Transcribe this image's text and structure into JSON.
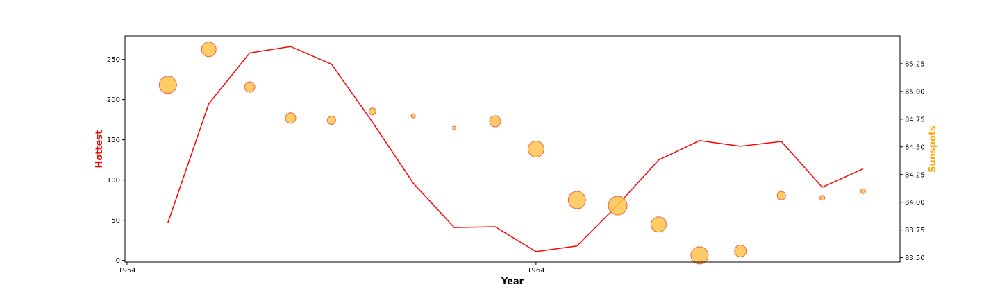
{
  "chart_data": {
    "type": "line",
    "title": "",
    "xlabel": "Year",
    "ylabel_left": "Hottest",
    "ylabel_right": "Sunspots",
    "x": [
      1955,
      1956,
      1957,
      1958,
      1959,
      1960,
      1961,
      1962,
      1963,
      1964,
      1965,
      1966,
      1967,
      1968,
      1969,
      1970,
      1971,
      1972
    ],
    "xlim": [
      1953.95,
      1972.9
    ],
    "xticks": [
      1954,
      1964
    ],
    "xtick_labels": [
      "1954",
      "1964"
    ],
    "ylim_left": [
      -2,
      279
    ],
    "yticks_left": [
      0,
      50,
      100,
      150,
      200,
      250
    ],
    "ytick_labels_left": [
      "0",
      "50",
      "100",
      "150",
      "200",
      "250"
    ],
    "ylim_right": [
      83.46,
      85.5
    ],
    "yticks_right": [
      83.5,
      83.75,
      84.0,
      84.25,
      84.5,
      84.75,
      85.0,
      85.25
    ],
    "ytick_labels_right": [
      "83.50",
      "83.75",
      "84.00",
      "84.25",
      "84.50",
      "84.75",
      "85.00",
      "85.25"
    ],
    "series": [
      {
        "kind": "line",
        "axis": "left",
        "color": "#ff0000",
        "values": [
          47,
          195,
          258,
          266,
          244,
          172,
          96,
          41,
          42,
          11,
          18,
          69,
          125,
          149,
          142,
          148,
          91,
          114
        ]
      },
      {
        "kind": "scatter",
        "axis": "right",
        "fill": "#ffc34d",
        "stroke": "#f06040",
        "values": [
          85.06,
          85.38,
          85.04,
          84.76,
          84.74,
          84.82,
          84.78,
          84.67,
          84.73,
          84.48,
          84.02,
          83.97,
          83.8,
          83.52,
          83.56,
          84.06,
          84.04,
          84.1
        ],
        "sizes": [
          12.5,
          10.5,
          7.5,
          7.5,
          6,
          5,
          3,
          2.5,
          8,
          11.5,
          12.5,
          13.5,
          11,
          12.5,
          8.5,
          6,
          3.5,
          3.5
        ]
      }
    ],
    "grid": false,
    "legend": "none",
    "colors": {
      "left_axis_label": "#ff0000",
      "right_axis_label": "#ffa500"
    }
  }
}
